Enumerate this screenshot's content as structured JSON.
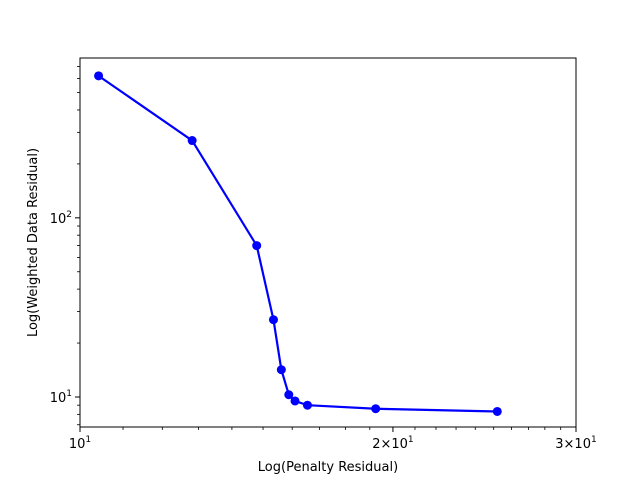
{
  "chart_data": {
    "type": "line",
    "title": "",
    "xlabel": "Log(Penalty Residual)",
    "ylabel": "Log(Weighted Data Residual)",
    "xscale": "log",
    "yscale": "log",
    "xlim": [
      10,
      30
    ],
    "ylim": [
      6.8,
      780
    ],
    "grid": false,
    "legend": "none",
    "x_major_ticks": [
      {
        "value": 10,
        "base": "10",
        "exp": "1"
      },
      {
        "value": 20,
        "base": "2×10",
        "exp": "1"
      },
      {
        "value": 30,
        "base": "3×10",
        "exp": "1"
      }
    ],
    "y_major_ticks": [
      {
        "value": 10,
        "base": "10",
        "exp": "1"
      },
      {
        "value": 100,
        "base": "10",
        "exp": "2"
      }
    ],
    "series": [
      {
        "color": "#0000ff",
        "marker": "circle",
        "x": [
          10.42,
          12.82,
          14.79,
          15.35,
          15.62,
          15.88,
          16.1,
          16.55,
          19.25,
          25.2
        ],
        "y": [
          620,
          270,
          70,
          27,
          14.2,
          10.3,
          9.5,
          9.0,
          8.6,
          8.3
        ]
      }
    ]
  }
}
